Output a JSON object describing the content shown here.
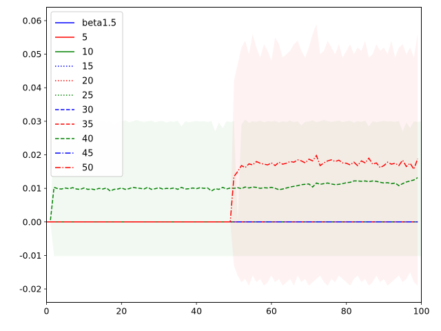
{
  "chart_data": {
    "type": "line",
    "title": "",
    "xlabel": "",
    "ylabel": "",
    "xlim": [
      0,
      100
    ],
    "ylim": [
      -0.024,
      0.064
    ],
    "x_ticks": [
      0,
      20,
      40,
      60,
      80,
      100
    ],
    "x_tick_labels": [
      "0",
      "20",
      "40",
      "60",
      "80",
      "100"
    ],
    "y_ticks": [
      -0.02,
      -0.01,
      0.0,
      0.01,
      0.02,
      0.03,
      0.04,
      0.05,
      0.06
    ],
    "y_tick_labels": [
      "-0.02",
      "-0.01",
      "0.00",
      "0.01",
      "0.02",
      "0.03",
      "0.04",
      "0.05",
      "0.06"
    ],
    "legend_position": "top-left",
    "series": [
      {
        "name": "beta1.5",
        "color": "#0000ff",
        "style": "solid",
        "kind": "zero"
      },
      {
        "name": "5",
        "color": "#ff0000",
        "style": "solid",
        "kind": "zero"
      },
      {
        "name": "10",
        "color": "#008000",
        "style": "solid",
        "kind": "zero"
      },
      {
        "name": "15",
        "color": "#0000ff",
        "style": "dotted",
        "kind": "zero"
      },
      {
        "name": "20",
        "color": "#ff0000",
        "style": "dotted",
        "kind": "zero"
      },
      {
        "name": "25",
        "color": "#008000",
        "style": "dotted",
        "kind": "zero"
      },
      {
        "name": "30",
        "color": "#0000ff",
        "style": "dashed",
        "kind": "zero"
      },
      {
        "name": "35",
        "color": "#ff0000",
        "style": "dashed",
        "kind": "zero"
      },
      {
        "name": "40",
        "color": "#008000",
        "style": "dashed",
        "kind": "green"
      },
      {
        "name": "45",
        "color": "#0000ff",
        "style": "dashdot",
        "kind": "zero"
      },
      {
        "name": "50",
        "color": "#ff0000",
        "style": "dashdot",
        "kind": "red"
      }
    ],
    "green_series_40": {
      "x_start": 0,
      "values": [
        0.0,
        0.0,
        0.0103,
        0.0099,
        0.0098,
        0.0101,
        0.0099,
        0.0102,
        0.0098,
        0.0097,
        0.0101,
        0.0097,
        0.0098,
        0.0096,
        0.01,
        0.0098,
        0.0101,
        0.0092,
        0.0097,
        0.0098,
        0.0101,
        0.0097,
        0.0099,
        0.0103,
        0.0101,
        0.01,
        0.0098,
        0.0103,
        0.0097,
        0.0099,
        0.0102,
        0.0098,
        0.01,
        0.0099,
        0.0101,
        0.0097,
        0.0103,
        0.0098,
        0.0099,
        0.0101,
        0.0099,
        0.0102,
        0.01,
        0.0101,
        0.0092,
        0.0099,
        0.0097,
        0.0103,
        0.0098,
        0.0101,
        0.01,
        0.0102,
        0.0099,
        0.0104,
        0.0101,
        0.0104,
        0.0103,
        0.01,
        0.0102,
        0.0101,
        0.0103,
        0.01,
        0.0096,
        0.0098,
        0.0101,
        0.0104,
        0.0106,
        0.0108,
        0.0111,
        0.0112,
        0.0113,
        0.0104,
        0.0116,
        0.0112,
        0.0114,
        0.0116,
        0.0113,
        0.0111,
        0.0112,
        0.0114,
        0.0117,
        0.0118,
        0.0122,
        0.0122,
        0.0121,
        0.0122,
        0.012,
        0.0122,
        0.0121,
        0.0118,
        0.0116,
        0.0117,
        0.0114,
        0.0116,
        0.0108,
        0.0114,
        0.0119,
        0.0122,
        0.0125,
        0.0132
      ]
    },
    "red_series_50": {
      "x_start": 0,
      "values": [
        0.0,
        0.0,
        0.0,
        0.0,
        0.0,
        0.0,
        0.0,
        0.0,
        0.0,
        0.0,
        0.0,
        0.0,
        0.0,
        0.0,
        0.0,
        0.0,
        0.0,
        0.0,
        0.0,
        0.0,
        0.0,
        0.0,
        0.0,
        0.0,
        0.0,
        0.0,
        0.0,
        0.0,
        0.0,
        0.0,
        0.0,
        0.0,
        0.0,
        0.0,
        0.0,
        0.0,
        0.0,
        0.0,
        0.0,
        0.0,
        0.0,
        0.0,
        0.0,
        0.0,
        0.0,
        0.0,
        0.0,
        0.0,
        0.0,
        0.0,
        0.0135,
        0.015,
        0.0168,
        0.0162,
        0.0173,
        0.017,
        0.018,
        0.0175,
        0.0172,
        0.017,
        0.0176,
        0.0168,
        0.0178,
        0.0172,
        0.0175,
        0.018,
        0.0178,
        0.0185,
        0.0182,
        0.0176,
        0.0187,
        0.0182,
        0.0198,
        0.0168,
        0.0176,
        0.0182,
        0.0185,
        0.018,
        0.0184,
        0.0176,
        0.0175,
        0.017,
        0.0178,
        0.0168,
        0.0182,
        0.0176,
        0.019,
        0.0172,
        0.0176,
        0.0162,
        0.0168,
        0.0178,
        0.0172,
        0.0175,
        0.0168,
        0.0184,
        0.0165,
        0.0175,
        0.0157,
        0.0188
      ]
    },
    "green_band": {
      "x_start": 1,
      "x_end": 100,
      "upper": [
        0.0,
        0.029,
        0.0305,
        0.0295,
        0.03,
        0.0298,
        0.0302,
        0.0297,
        0.03,
        0.0299,
        0.0301,
        0.0296,
        0.03,
        0.0298,
        0.0302,
        0.0297,
        0.03,
        0.0288,
        0.0298,
        0.0299,
        0.0303,
        0.0297,
        0.03,
        0.0304,
        0.03,
        0.0298,
        0.03,
        0.0302,
        0.0297,
        0.03,
        0.0301,
        0.0296,
        0.03,
        0.0298,
        0.0302,
        0.0285,
        0.03,
        0.0297,
        0.0299,
        0.0301,
        0.0299,
        0.03,
        0.0298,
        0.0301,
        0.027,
        0.0296,
        0.028,
        0.03,
        0.0298,
        0.03
      ]
    },
    "red_band": {
      "x_start": 49,
      "upper": [
        0.0,
        0.042,
        0.047,
        0.052,
        0.054,
        0.05,
        0.056,
        0.052,
        0.049,
        0.053,
        0.051,
        0.048,
        0.055,
        0.053,
        0.049,
        0.05,
        0.051,
        0.053,
        0.054,
        0.051,
        0.049,
        0.052,
        0.056,
        0.059,
        0.05,
        0.051,
        0.054,
        0.052,
        0.05,
        0.053,
        0.049,
        0.051,
        0.053,
        0.05,
        0.052,
        0.051,
        0.054,
        0.049,
        0.05,
        0.053,
        0.051,
        0.052,
        0.05,
        0.054,
        0.049,
        0.052,
        0.053,
        0.05,
        0.052,
        0.049,
        0.056
      ],
      "lower": [
        0.0,
        -0.013,
        -0.016,
        -0.018,
        -0.017,
        -0.019,
        -0.016,
        -0.018,
        -0.017,
        -0.019,
        -0.018,
        -0.016,
        -0.018,
        -0.017,
        -0.019,
        -0.018,
        -0.017,
        -0.019,
        -0.016,
        -0.018,
        -0.017,
        -0.019,
        -0.018,
        -0.017,
        -0.016,
        -0.018,
        -0.019,
        -0.017,
        -0.018,
        -0.016,
        -0.017,
        -0.018,
        -0.019,
        -0.017,
        -0.016,
        -0.018,
        -0.017,
        -0.019,
        -0.018,
        -0.016,
        -0.018,
        -0.017,
        -0.019,
        -0.018,
        -0.017,
        -0.016,
        -0.018,
        -0.017,
        -0.015,
        -0.018,
        -0.019
      ]
    },
    "band_colors": {
      "green": "#008000",
      "red": "#ff0000"
    }
  }
}
